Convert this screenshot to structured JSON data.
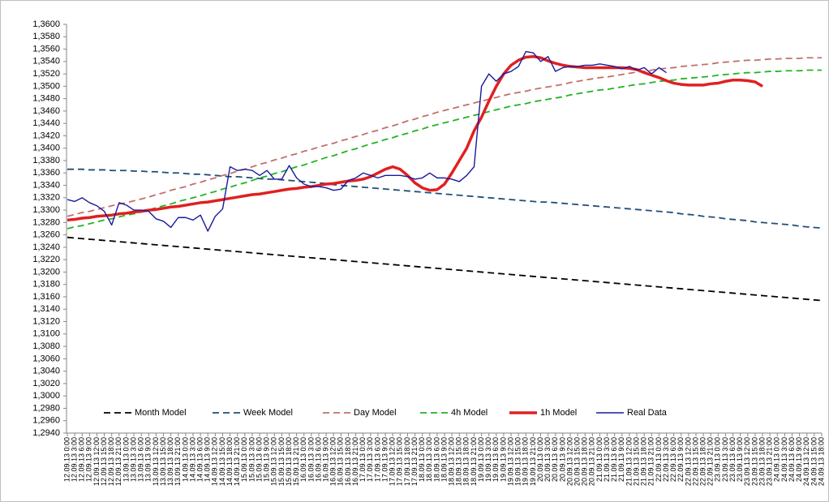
{
  "chart_data": {
    "type": "line",
    "categories": [
      "12.09.13 0:00",
      "12.09.13 3:00",
      "12.09.13 6:00",
      "12.09.13 9:00",
      "12.09.13 12:00",
      "12.09.13 15:00",
      "12.09.13 18:00",
      "12.09.13 21:00",
      "13.09.13 0:00",
      "13.09.13 3:00",
      "13.09.13 6:00",
      "13.09.13 9:00",
      "13.09.13 12:00",
      "13.09.13 15:00",
      "13.09.13 18:00",
      "13.09.13 21:00",
      "14.09.13 0:00",
      "14.09.13 3:00",
      "14.09.13 6:00",
      "14.09.13 9:00",
      "14.09.13 12:00",
      "14.09.13 15:00",
      "14.09.13 18:00",
      "14.09.13 21:00",
      "15.09.13 0:00",
      "15.09.13 3:00",
      "15.09.13 6:00",
      "15.09.13 9:00",
      "15.09.13 12:00",
      "15.09.13 15:00",
      "15.09.13 18:00",
      "15.09.13 21:00",
      "16.09.13 0:00",
      "16.09.13 3:00",
      "16.09.13 6:00",
      "16.09.13 9:00",
      "16.09.13 12:00",
      "16.09.13 15:00",
      "16.09.13 18:00",
      "16.09.13 21:00",
      "17.09.13 0:00",
      "17.09.13 3:00",
      "17.09.13 6:00",
      "17.09.13 9:00",
      "17.09.13 12:00",
      "17.09.13 15:00",
      "17.09.13 18:00",
      "17.09.13 21:00",
      "18.09.13 0:00",
      "18.09.13 3:00",
      "18.09.13 6:00",
      "18.09.13 9:00",
      "18.09.13 12:00",
      "18.09.13 15:00",
      "18.09.13 18:00",
      "18.09.13 21:00",
      "19.09.13 0:00",
      "19.09.13 3:00",
      "19.09.13 6:00",
      "19.09.13 9:00",
      "19.09.13 12:00",
      "19.09.13 15:00",
      "19.09.13 18:00",
      "19.09.13 21:00",
      "20.09.13 0:00",
      "20.09.13 3:00",
      "20.09.13 6:00",
      "20.09.13 9:00",
      "20.09.13 12:00",
      "20.09.13 15:00",
      "20.09.13 18:00",
      "20.09.13 21:00",
      "21.09.13 0:00",
      "21.09.13 3:00",
      "21.09.13 6:00",
      "21.09.13 9:00",
      "21.09.13 12:00",
      "21.09.13 15:00",
      "21.09.13 18:00",
      "21.09.13 21:00",
      "22.09.13 0:00",
      "22.09.13 3:00",
      "22.09.13 6:00",
      "22.09.13 9:00",
      "22.09.13 12:00",
      "22.09.13 15:00",
      "22.09.13 18:00",
      "22.09.13 21:00",
      "23.09.13 0:00",
      "23.09.13 3:00",
      "23.09.13 6:00",
      "23.09.13 9:00",
      "23.09.13 12:00",
      "23.09.13 15:00",
      "23.09.13 18:00",
      "23.09.13 21:00",
      "24.09.13 0:00",
      "24.09.13 3:00",
      "24.09.13 6:00",
      "24.09.13 9:00",
      "24.09.13 12:00",
      "24.09.13 15:00",
      "24.09.13 18:00"
    ],
    "series": [
      {
        "name": "Month Model",
        "color": "#000000",
        "style": "dashed",
        "values": [
          1.3256,
          1.3255,
          1.3254,
          1.3253,
          1.3252,
          1.3251,
          1.325,
          1.3249,
          1.3248,
          1.3247,
          1.3246,
          1.3245,
          1.3244,
          1.3243,
          1.3242,
          1.3241,
          1.324,
          1.3239,
          1.3238,
          1.3237,
          1.3236,
          1.3235,
          1.3234,
          1.3233,
          1.3232,
          1.3231,
          1.323,
          1.3229,
          1.3228,
          1.3227,
          1.3226,
          1.3225,
          1.3224,
          1.3223,
          1.3222,
          1.3221,
          1.322,
          1.3219,
          1.3218,
          1.3217,
          1.3216,
          1.3215,
          1.3214,
          1.3213,
          1.3212,
          1.3211,
          1.321,
          1.3209,
          1.3208,
          1.3207,
          1.3206,
          1.3205,
          1.3204,
          1.3203,
          1.3202,
          1.3201,
          1.32,
          1.3199,
          1.3198,
          1.3197,
          1.3196,
          1.3195,
          1.3194,
          1.3193,
          1.3192,
          1.3191,
          1.319,
          1.3189,
          1.3188,
          1.3187,
          1.3186,
          1.3185,
          1.3184,
          1.3183,
          1.3182,
          1.3181,
          1.318,
          1.3179,
          1.3178,
          1.3177,
          1.3176,
          1.3175,
          1.3174,
          1.3173,
          1.3172,
          1.3171,
          1.317,
          1.3169,
          1.3168,
          1.3167,
          1.3166,
          1.3165,
          1.3164,
          1.3163,
          1.3162,
          1.3161,
          1.316,
          1.3159,
          1.3158,
          1.3157,
          1.3156,
          1.3155,
          1.3154
        ]
      },
      {
        "name": "Week Model",
        "color": "#1f4e79",
        "style": "dashed",
        "values": [
          1.3366,
          1.3366,
          1.3366,
          1.3365,
          1.3365,
          1.3365,
          1.3364,
          1.3364,
          1.3364,
          1.3363,
          1.3363,
          1.3362,
          1.3362,
          1.3361,
          1.336,
          1.336,
          1.3359,
          1.3358,
          1.3358,
          1.3357,
          1.3356,
          1.3355,
          1.3354,
          1.3354,
          1.3353,
          1.3352,
          1.3351,
          1.335,
          1.335,
          1.3349,
          1.3348,
          1.3347,
          1.3346,
          1.3345,
          1.3344,
          1.3343,
          1.3341,
          1.334,
          1.3339,
          1.3338,
          1.3337,
          1.3336,
          1.3335,
          1.3334,
          1.3333,
          1.3332,
          1.3331,
          1.333,
          1.3329,
          1.3328,
          1.3327,
          1.3326,
          1.3325,
          1.3324,
          1.3323,
          1.3322,
          1.3321,
          1.332,
          1.3319,
          1.3318,
          1.3317,
          1.3316,
          1.3315,
          1.3314,
          1.3313,
          1.3313,
          1.3312,
          1.3311,
          1.331,
          1.3309,
          1.3308,
          1.3307,
          1.3306,
          1.3305,
          1.3304,
          1.3303,
          1.3302,
          1.3301,
          1.33,
          1.3299,
          1.3298,
          1.3297,
          1.3296,
          1.3294,
          1.3293,
          1.3292,
          1.329,
          1.3289,
          1.3288,
          1.3286,
          1.3285,
          1.3284,
          1.3283,
          1.3281,
          1.328,
          1.3279,
          1.3278,
          1.3277,
          1.3276,
          1.3274,
          1.3273,
          1.3272,
          1.3271
        ]
      },
      {
        "name": "Day Model",
        "color": "#c0706c",
        "style": "dashed",
        "values": [
          1.329,
          1.3293,
          1.3296,
          1.3298,
          1.3301,
          1.3304,
          1.3307,
          1.331,
          1.3312,
          1.3315,
          1.3318,
          1.3321,
          1.3325,
          1.3328,
          1.3332,
          1.3335,
          1.3338,
          1.3342,
          1.3345,
          1.3349,
          1.3352,
          1.3356,
          1.3359,
          1.3363,
          1.3366,
          1.337,
          1.3374,
          1.3377,
          1.3381,
          1.3384,
          1.3388,
          1.3391,
          1.3395,
          1.3398,
          1.3402,
          1.3405,
          1.3408,
          1.3412,
          1.3415,
          1.3419,
          1.3422,
          1.3426,
          1.3429,
          1.3433,
          1.3436,
          1.344,
          1.3444,
          1.3447,
          1.3451,
          1.3454,
          1.3458,
          1.3461,
          1.3464,
          1.3467,
          1.347,
          1.3473,
          1.3476,
          1.3479,
          1.3482,
          1.3485,
          1.3488,
          1.349,
          1.3492,
          1.3495,
          1.3497,
          1.3499,
          1.3501,
          1.3503,
          1.3506,
          1.3508,
          1.351,
          1.3512,
          1.3514,
          1.3515,
          1.3517,
          1.3519,
          1.3521,
          1.3523,
          1.3524,
          1.3526,
          1.3528,
          1.3529,
          1.353,
          1.3532,
          1.3533,
          1.3534,
          1.3535,
          1.3536,
          1.3538,
          1.3539,
          1.354,
          1.3541,
          1.3542,
          1.3542,
          1.3543,
          1.3544,
          1.3544,
          1.3545,
          1.3545,
          1.3545,
          1.3546,
          1.3546,
          1.3546
        ]
      },
      {
        "name": "4h Model",
        "color": "#22b422",
        "style": "dashed",
        "values": [
          1.327,
          1.3273,
          1.3275,
          1.3278,
          1.3281,
          1.3284,
          1.3286,
          1.3289,
          1.3292,
          1.3294,
          1.3297,
          1.33,
          1.3304,
          1.3307,
          1.331,
          1.3314,
          1.3317,
          1.332,
          1.3323,
          1.3327,
          1.333,
          1.3334,
          1.3337,
          1.3341,
          1.3344,
          1.3348,
          1.3352,
          1.3355,
          1.3359,
          1.3362,
          1.3366,
          1.337,
          1.3373,
          1.3377,
          1.3381,
          1.3385,
          1.3388,
          1.3392,
          1.3396,
          1.3399,
          1.3403,
          1.3407,
          1.341,
          1.3414,
          1.3417,
          1.3421,
          1.3424,
          1.3428,
          1.3431,
          1.3435,
          1.3438,
          1.3441,
          1.3444,
          1.3447,
          1.345,
          1.3453,
          1.3456,
          1.3459,
          1.3462,
          1.3465,
          1.3468,
          1.347,
          1.3472,
          1.3475,
          1.3477,
          1.3479,
          1.3481,
          1.3483,
          1.3486,
          1.3488,
          1.349,
          1.3492,
          1.3494,
          1.3495,
          1.3497,
          1.3499,
          1.3501,
          1.3503,
          1.3504,
          1.3506,
          1.3508,
          1.3509,
          1.351,
          1.3512,
          1.3513,
          1.3514,
          1.3515,
          1.3516,
          1.3518,
          1.3519,
          1.352,
          1.3521,
          1.3522,
          1.3522,
          1.3523,
          1.3524,
          1.3524,
          1.3525,
          1.3525,
          1.3525,
          1.3526,
          1.3526,
          1.3526
        ]
      },
      {
        "name": "1h Model",
        "color": "#e02020",
        "style": "bold",
        "values": [
          1.3284,
          1.3285,
          1.3287,
          1.3288,
          1.329,
          1.3291,
          1.3292,
          1.3294,
          1.3295,
          1.3297,
          1.3298,
          1.33,
          1.3301,
          1.3303,
          1.3305,
          1.3306,
          1.3308,
          1.331,
          1.3312,
          1.3313,
          1.3315,
          1.3317,
          1.3319,
          1.3321,
          1.3323,
          1.3325,
          1.3326,
          1.3328,
          1.333,
          1.3332,
          1.3334,
          1.3335,
          1.3337,
          1.3338,
          1.334,
          1.3342,
          1.3343,
          1.3345,
          1.3347,
          1.3348,
          1.335,
          1.3354,
          1.336,
          1.3366,
          1.337,
          1.3366,
          1.3356,
          1.3344,
          1.3336,
          1.3332,
          1.3333,
          1.3342,
          1.336,
          1.338,
          1.34,
          1.3428,
          1.345,
          1.3476,
          1.35,
          1.352,
          1.3534,
          1.3542,
          1.3547,
          1.3548,
          1.3546,
          1.3541,
          1.3537,
          1.3534,
          1.3532,
          1.3531,
          1.353,
          1.353,
          1.353,
          1.353,
          1.353,
          1.353,
          1.3529,
          1.3527,
          1.3522,
          1.3518,
          1.3514,
          1.3509,
          1.3505,
          1.3503,
          1.3502,
          1.3502,
          1.3502,
          1.3504,
          1.3505,
          1.3508,
          1.351,
          1.351,
          1.3509,
          1.3507,
          1.35,
          null,
          null,
          null,
          null,
          null,
          null,
          null,
          null
        ]
      },
      {
        "name": "Real Data",
        "color": "#1a1a9c",
        "style": "solid",
        "values": [
          1.3317,
          1.3314,
          1.332,
          1.3312,
          1.3307,
          1.3298,
          1.3276,
          1.3312,
          1.3308,
          1.33,
          1.33,
          1.3298,
          1.3286,
          1.3282,
          1.3272,
          1.3288,
          1.3288,
          1.3284,
          1.3292,
          1.3266,
          1.329,
          1.3302,
          1.337,
          1.3364,
          1.3366,
          1.3364,
          1.3356,
          1.3364,
          1.335,
          1.335,
          1.3372,
          1.3352,
          1.3342,
          1.3338,
          1.3338,
          1.3336,
          1.3332,
          1.3334,
          1.3348,
          1.3352,
          1.336,
          1.3356,
          1.3352,
          1.3356,
          1.3356,
          1.3356,
          1.3354,
          1.335,
          1.3352,
          1.336,
          1.3352,
          1.3352,
          1.335,
          1.3346,
          1.3356,
          1.337,
          1.35,
          1.352,
          1.3508,
          1.352,
          1.3524,
          1.3532,
          1.3556,
          1.3554,
          1.354,
          1.3548,
          1.3524,
          1.353,
          1.3532,
          1.3532,
          1.3534,
          1.3534,
          1.3536,
          1.3534,
          1.3532,
          1.3528,
          1.3532,
          1.3526,
          1.353,
          1.352,
          1.353,
          1.3522,
          null,
          null,
          null,
          null,
          null,
          null,
          null,
          null,
          null,
          null,
          null,
          null,
          null,
          null,
          null,
          null,
          null,
          null,
          null,
          null,
          null
        ]
      }
    ],
    "ylim": [
      1.294,
      1.36
    ],
    "yticks": [
      {
        "value": 1.294,
        "label": "1,2940"
      },
      {
        "value": 1.296,
        "label": "1,2960"
      },
      {
        "value": 1.298,
        "label": "1,2980"
      },
      {
        "value": 1.3,
        "label": "1,3000"
      },
      {
        "value": 1.302,
        "label": "1,3020"
      },
      {
        "value": 1.304,
        "label": "1,3040"
      },
      {
        "value": 1.306,
        "label": "1,3060"
      },
      {
        "value": 1.308,
        "label": "1,3080"
      },
      {
        "value": 1.31,
        "label": "1,3100"
      },
      {
        "value": 1.312,
        "label": "1,3120"
      },
      {
        "value": 1.314,
        "label": "1,3140"
      },
      {
        "value": 1.316,
        "label": "1,3160"
      },
      {
        "value": 1.318,
        "label": "1,3180"
      },
      {
        "value": 1.32,
        "label": "1,3200"
      },
      {
        "value": 1.322,
        "label": "1,3220"
      },
      {
        "value": 1.324,
        "label": "1,3240"
      },
      {
        "value": 1.326,
        "label": "1,3260"
      },
      {
        "value": 1.328,
        "label": "1,3280"
      },
      {
        "value": 1.33,
        "label": "1,3300"
      },
      {
        "value": 1.332,
        "label": "1,3320"
      },
      {
        "value": 1.334,
        "label": "1,3340"
      },
      {
        "value": 1.336,
        "label": "1,3360"
      },
      {
        "value": 1.338,
        "label": "1,3380"
      },
      {
        "value": 1.34,
        "label": "1,3400"
      },
      {
        "value": 1.342,
        "label": "1,3420"
      },
      {
        "value": 1.344,
        "label": "1,3440"
      },
      {
        "value": 1.346,
        "label": "1,3460"
      },
      {
        "value": 1.348,
        "label": "1,3480"
      },
      {
        "value": 1.35,
        "label": "1,3500"
      },
      {
        "value": 1.352,
        "label": "1,3520"
      },
      {
        "value": 1.354,
        "label": "1,3540"
      },
      {
        "value": 1.356,
        "label": "1,3560"
      },
      {
        "value": 1.358,
        "label": "1,3580"
      },
      {
        "value": 1.36,
        "label": "1,3600"
      }
    ],
    "grid": false,
    "legend": "bottom"
  }
}
